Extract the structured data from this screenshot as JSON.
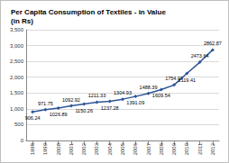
{
  "chart_data": {
    "type": "line",
    "title": "Per Capita Consumption of Textiles - in Value",
    "subtitle": "(in Rs)",
    "categories": [
      "1998",
      "1999",
      "2000",
      "2001",
      "2002",
      "2003",
      "2004",
      "2005",
      "2006",
      "2007",
      "2008",
      "2009",
      "2010",
      "2011",
      "2012"
    ],
    "values": [
      906.24,
      971.75,
      1026.89,
      1092.92,
      1150.26,
      1211.33,
      1237.28,
      1304.93,
      1391.09,
      1488.39,
      1609.54,
      1754.07,
      2119.41,
      2473.64,
      2862.87
    ],
    "color": "#2e5597",
    "marker": "diamond",
    "ylim": [
      0,
      3500
    ],
    "yticks": [
      0,
      500,
      1000,
      1500,
      2000,
      2500,
      3000,
      3500
    ],
    "grid": true,
    "data_labels": true
  }
}
